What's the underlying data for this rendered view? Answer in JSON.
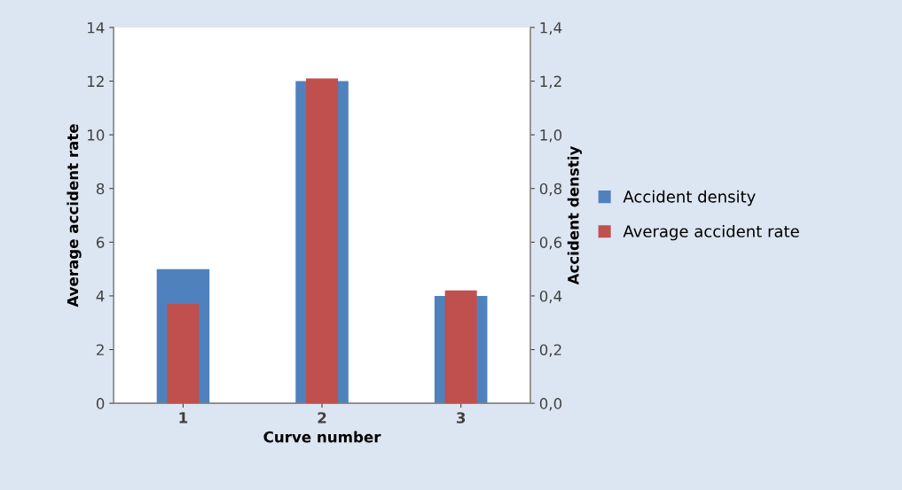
{
  "chart_data": {
    "type": "bar",
    "xlabel": "Curve number",
    "ylabel": "Average accident rate",
    "y2label": "Accident denstiy",
    "categories": [
      "1",
      "2",
      "3"
    ],
    "series": [
      {
        "name": "Accident density",
        "color": "#4f81bd",
        "values": [
          0.5,
          1.2,
          0.4
        ],
        "axis": "y2"
      },
      {
        "name": "Average accident rate",
        "color": "#c0504d",
        "values": [
          3.7,
          12.1,
          4.2
        ]
      }
    ],
    "ylim": [
      0,
      14
    ],
    "yticks": [
      0,
      2,
      4,
      6,
      8,
      10,
      12,
      14
    ],
    "y2lim": [
      0,
      1.4
    ],
    "y2ticks": [
      {
        "value": 0,
        "label": "0,0"
      },
      {
        "value": 0.2,
        "label": "0,2"
      },
      {
        "value": 0.4,
        "label": "0,4"
      },
      {
        "value": 0.6,
        "label": "0,6"
      },
      {
        "value": 0.8,
        "label": "0,8"
      },
      {
        "value": 1.0,
        "label": "1,0"
      },
      {
        "value": 1.2,
        "label": "1,2"
      },
      {
        "value": 1.4,
        "label": "1,4"
      }
    ],
    "grid": false,
    "legend": "right"
  }
}
